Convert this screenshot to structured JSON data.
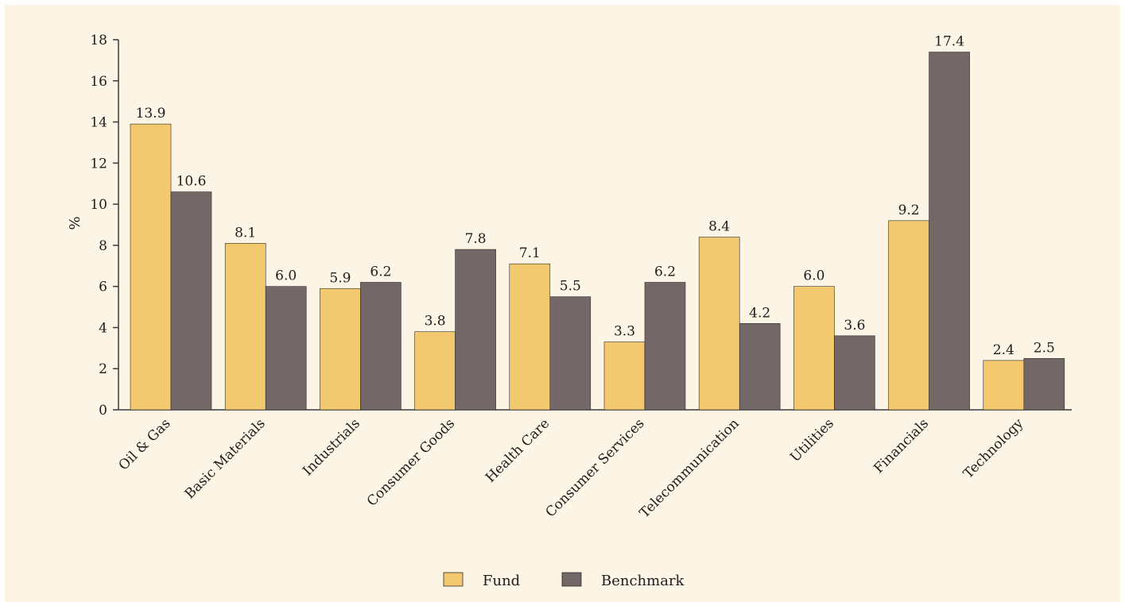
{
  "chart_data": {
    "type": "bar",
    "title": "",
    "xlabel": "",
    "ylabel": "%",
    "ylim": [
      0,
      18
    ],
    "yticks": [
      0,
      2,
      4,
      6,
      8,
      10,
      12,
      14,
      16,
      18
    ],
    "categories": [
      "Oil & Gas",
      "Basic Materials",
      "Industrials",
      "Consumer Goods",
      "Health Care",
      "Consumer Services",
      "Telecommunication",
      "Utilities",
      "Financials",
      "Technology"
    ],
    "series": [
      {
        "name": "Fund",
        "color": "#f3c96f",
        "values": [
          13.9,
          8.1,
          5.9,
          3.8,
          7.1,
          3.3,
          8.4,
          6.0,
          9.2,
          2.4
        ],
        "labels": [
          "13.9",
          "8.1",
          "5.9",
          "3.8",
          "7.1",
          "3.3",
          "8.4",
          "6.0",
          "9.2",
          "2.4"
        ]
      },
      {
        "name": "Benchmark",
        "color": "#736767",
        "values": [
          10.6,
          6.0,
          6.2,
          7.8,
          5.5,
          6.2,
          4.2,
          3.6,
          17.4,
          2.5
        ],
        "labels": [
          "10.6",
          "6.0",
          "6.2",
          "7.8",
          "5.5",
          "6.2",
          "4.2",
          "3.6",
          "17.4",
          "2.5"
        ]
      }
    ],
    "grid": false,
    "legend_position": "bottom-center"
  }
}
